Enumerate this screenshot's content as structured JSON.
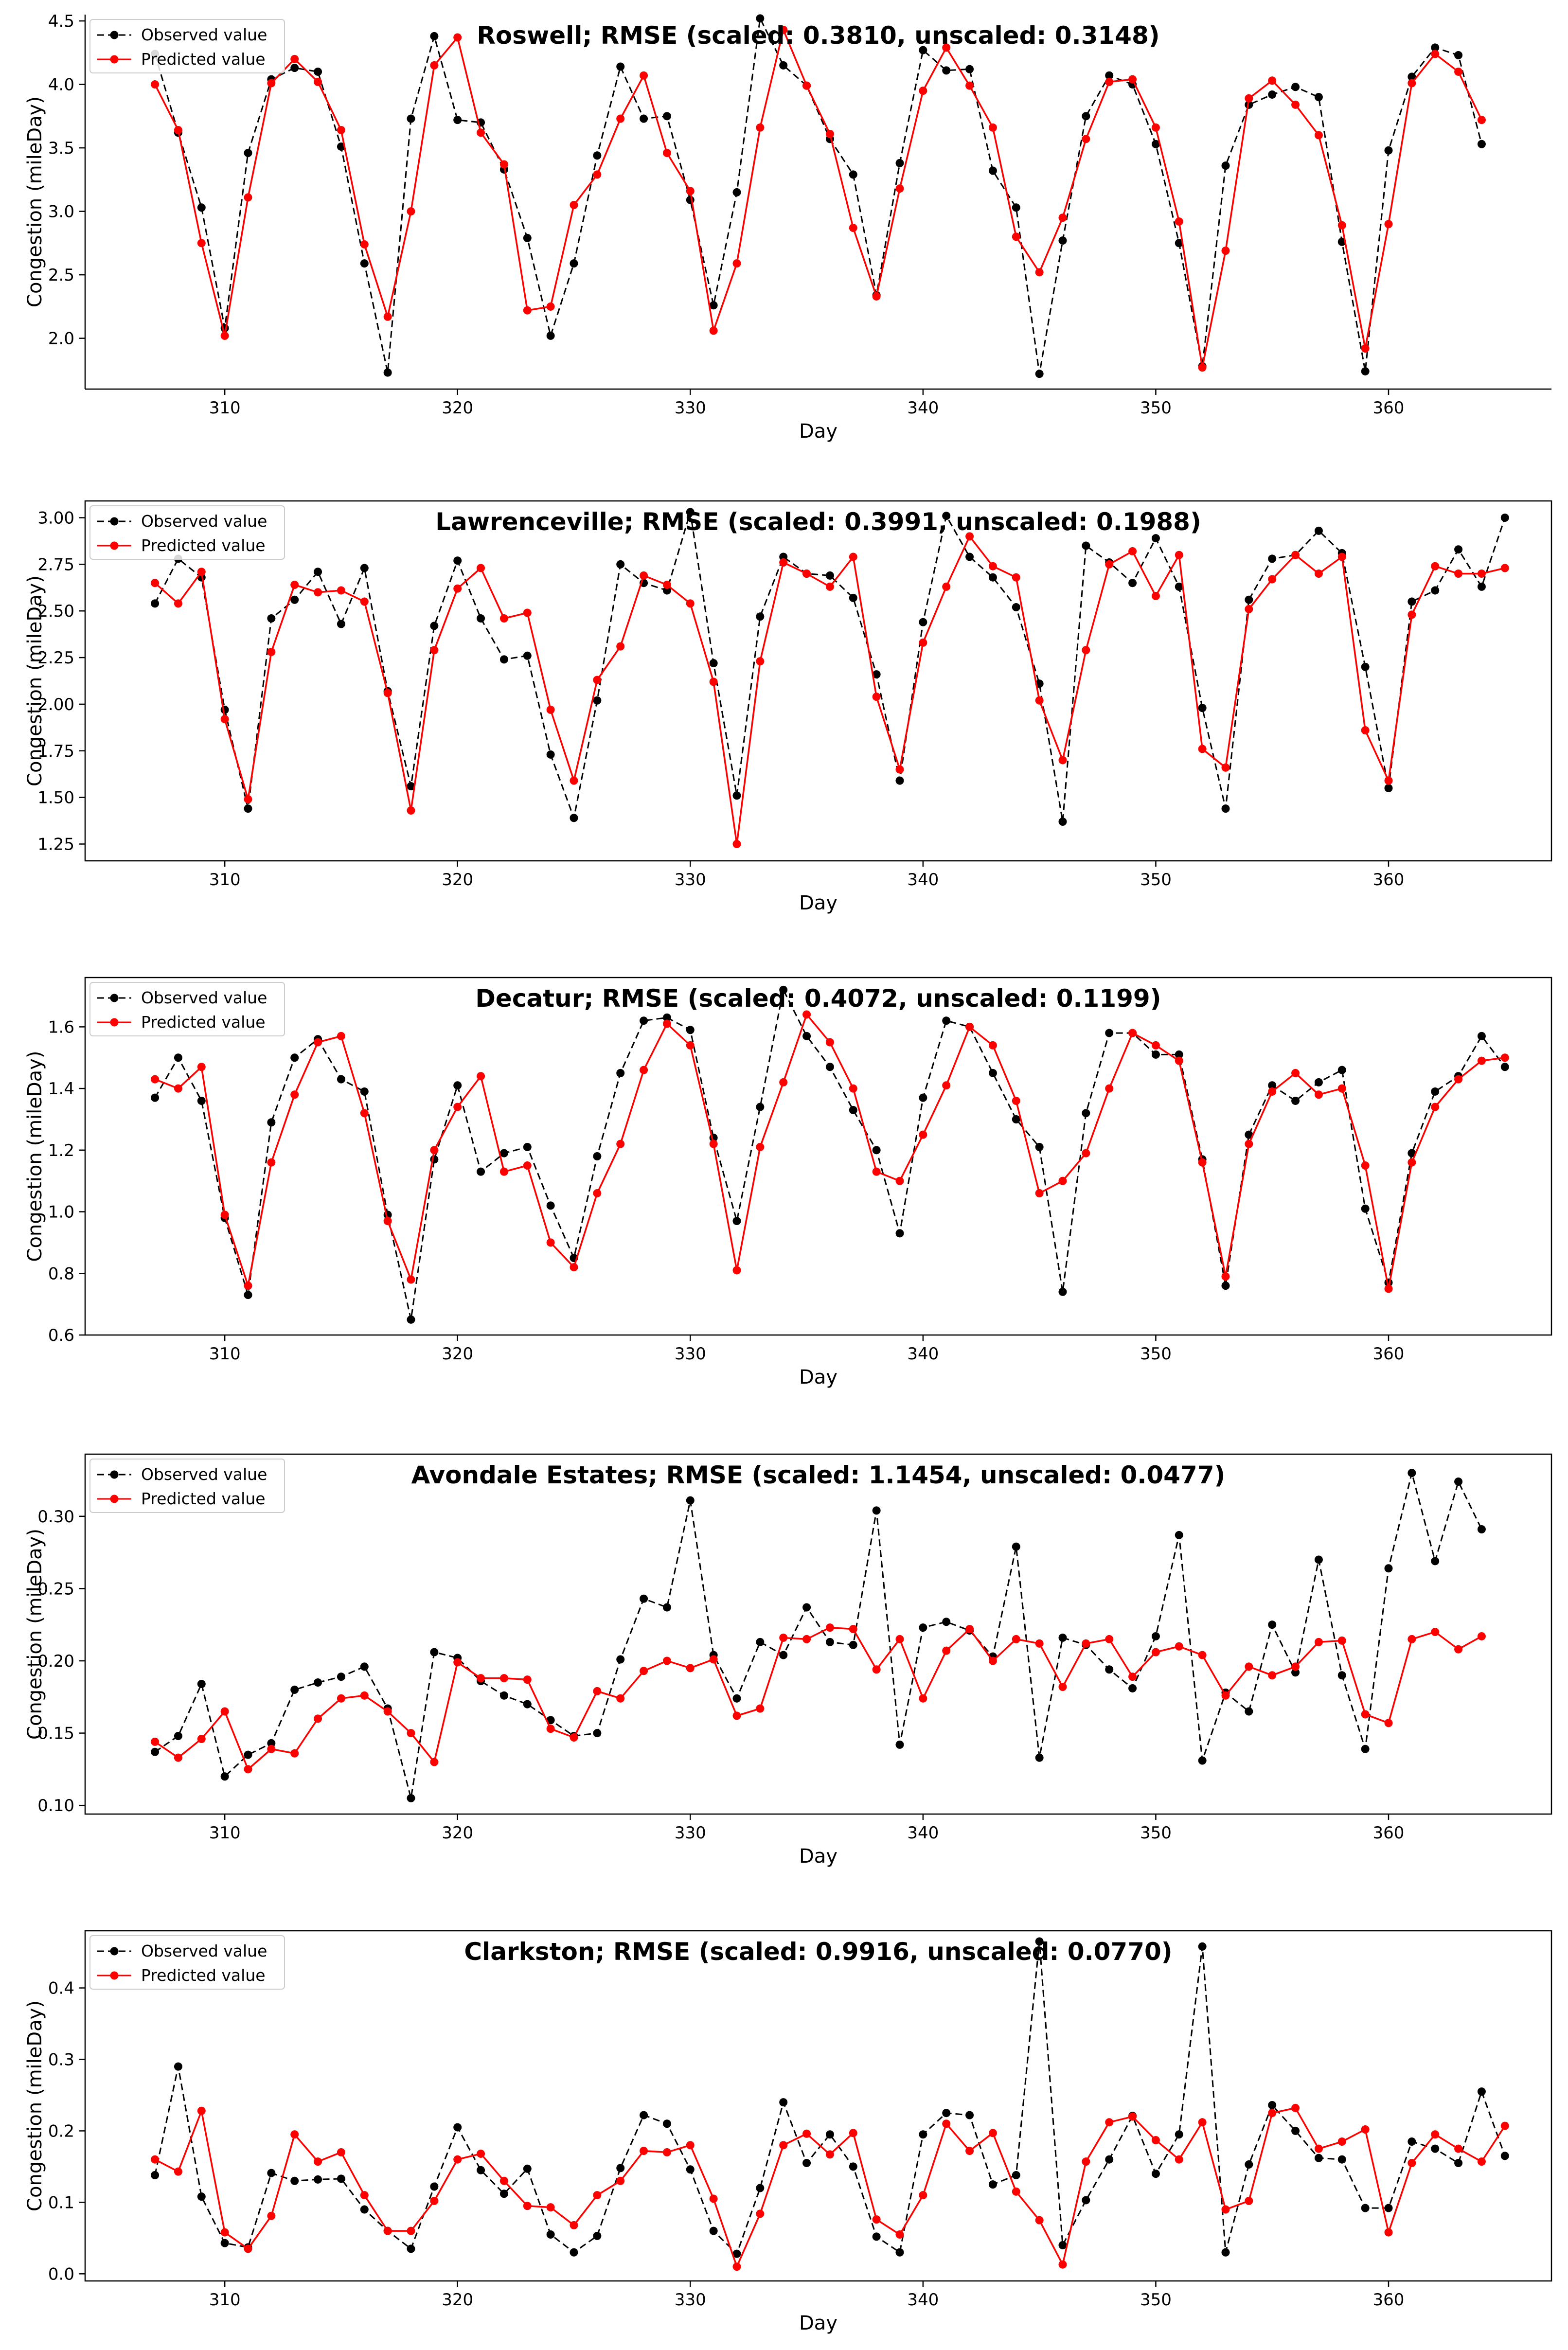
{
  "chart_data": [
    {
      "type": "line",
      "title": "Roswell; RMSE (scaled: 0.3810, unscaled: 0.3148)",
      "xlabel": "Day",
      "ylabel": "Congestion (mileDay)",
      "xlim": [
        304,
        367
      ],
      "ylim": [
        1.6,
        4.55
      ],
      "xticks": [
        310,
        320,
        330,
        340,
        350,
        360
      ],
      "yticks": [
        2.0,
        2.5,
        3.0,
        3.5,
        4.0,
        4.5
      ],
      "ytick_labels": [
        "2.0",
        "2.5",
        "3.0",
        "3.5",
        "4.0",
        "4.5"
      ],
      "legend": {
        "position": "top-left",
        "entries": [
          "Observed value",
          "Predicted value"
        ]
      },
      "series": [
        {
          "name": "Observed value",
          "color": "#000000",
          "style": "dashed",
          "values": [
            4.24,
            3.62,
            3.03,
            2.08,
            3.46,
            4.04,
            4.13,
            4.1,
            3.51,
            2.59,
            1.73,
            3.73,
            4.38,
            3.72,
            3.7,
            3.33,
            2.79,
            2.02,
            2.59,
            3.44,
            4.14,
            3.73,
            3.75,
            3.09,
            2.26,
            3.15,
            4.52,
            4.15,
            3.99,
            3.57,
            3.29,
            2.34,
            3.38,
            4.27,
            4.11,
            4.12,
            3.32,
            3.03,
            1.72,
            2.77,
            3.75,
            4.07,
            4.0,
            3.53,
            2.75,
            1.78,
            3.36,
            3.84,
            3.92,
            3.98,
            3.9,
            2.76,
            1.74,
            3.48,
            4.06,
            4.29,
            4.23,
            3.53
          ]
        },
        {
          "name": "Predicted value",
          "color": "#ff0000",
          "style": "solid",
          "values": [
            4.0,
            3.64,
            2.75,
            2.02,
            3.11,
            4.01,
            4.2,
            4.02,
            3.64,
            2.74,
            2.17,
            3.0,
            4.15,
            4.37,
            3.62,
            3.37,
            2.22,
            2.25,
            3.05,
            3.29,
            3.73,
            4.07,
            3.46,
            3.16,
            2.06,
            2.59,
            3.66,
            4.43,
            3.99,
            3.61,
            2.87,
            2.33,
            3.18,
            3.95,
            4.29,
            3.99,
            3.66,
            2.8,
            2.52,
            2.95,
            3.57,
            4.02,
            4.04,
            3.66,
            2.92,
            1.77,
            2.69,
            3.89,
            4.03,
            3.84,
            3.6,
            2.89,
            1.92,
            2.9,
            4.01,
            4.24,
            4.1,
            3.72
          ]
        }
      ]
    },
    {
      "type": "line",
      "title": "Lawrenceville; RMSE (scaled: 0.3991, unscaled: 0.1988)",
      "xlabel": "Day",
      "ylabel": "Congestion (mileDay)",
      "xlim": [
        304,
        367
      ],
      "ylim": [
        1.16,
        3.09
      ],
      "xticks": [
        310,
        320,
        330,
        340,
        350,
        360
      ],
      "yticks": [
        1.25,
        1.5,
        1.75,
        2.0,
        2.25,
        2.5,
        2.75,
        3.0
      ],
      "ytick_labels": [
        "1.25",
        "1.50",
        "1.75",
        "2.00",
        "2.25",
        "2.50",
        "2.75",
        "3.00"
      ],
      "legend": {
        "position": "top-left",
        "entries": [
          "Observed value",
          "Predicted value"
        ]
      },
      "series": [
        {
          "name": "Observed value",
          "color": "#000000",
          "style": "dashed",
          "values": [
            2.54,
            2.78,
            2.68,
            1.97,
            1.44,
            2.46,
            2.56,
            2.71,
            2.43,
            2.73,
            2.07,
            1.56,
            2.42,
            2.77,
            2.46,
            2.24,
            2.26,
            1.73,
            1.39,
            2.02,
            2.75,
            2.65,
            2.61,
            3.03,
            2.22,
            1.51,
            2.47,
            2.79,
            2.7,
            2.69,
            2.57,
            2.16,
            1.59,
            2.44,
            3.01,
            2.79,
            2.68,
            2.52,
            2.11,
            1.37,
            2.85,
            2.76,
            2.65,
            2.89,
            2.63,
            1.98,
            1.44,
            2.56,
            2.78,
            2.8,
            2.93,
            2.81,
            2.2,
            1.55,
            2.55,
            2.61,
            2.83,
            2.63,
            3.0
          ]
        },
        {
          "name": "Predicted value",
          "color": "#ff0000",
          "style": "solid",
          "values": [
            2.65,
            2.54,
            2.71,
            1.92,
            1.49,
            2.28,
            2.64,
            2.6,
            2.61,
            2.55,
            2.06,
            1.43,
            2.29,
            2.62,
            2.73,
            2.46,
            2.49,
            1.97,
            1.59,
            2.13,
            2.31,
            2.69,
            2.64,
            2.54,
            2.12,
            1.25,
            2.23,
            2.76,
            2.7,
            2.63,
            2.79,
            2.04,
            1.65,
            2.33,
            2.63,
            2.9,
            2.74,
            2.68,
            2.02,
            1.7,
            2.29,
            2.75,
            2.82,
            2.58,
            2.8,
            1.76,
            1.66,
            2.51,
            2.67,
            2.8,
            2.7,
            2.79,
            1.86,
            1.59,
            2.48,
            2.74,
            2.7,
            2.7,
            2.73
          ]
        }
      ]
    },
    {
      "type": "line",
      "title": "Decatur; RMSE (scaled: 0.4072, unscaled: 0.1199)",
      "xlabel": "Day",
      "ylabel": "Congestion (mileDay)",
      "xlim": [
        304,
        367
      ],
      "ylim": [
        0.6,
        1.76
      ],
      "xticks": [
        310,
        320,
        330,
        340,
        350,
        360
      ],
      "yticks": [
        0.6,
        0.8,
        1.0,
        1.2,
        1.4,
        1.6
      ],
      "ytick_labels": [
        "0.6",
        "0.8",
        "1.0",
        "1.2",
        "1.4",
        "1.6"
      ],
      "legend": {
        "position": "top-left",
        "entries": [
          "Observed value",
          "Predicted value"
        ]
      },
      "series": [
        {
          "name": "Observed value",
          "color": "#000000",
          "style": "dashed",
          "values": [
            1.37,
            1.5,
            1.36,
            0.98,
            0.73,
            1.29,
            1.5,
            1.56,
            1.43,
            1.39,
            0.99,
            0.65,
            1.17,
            1.41,
            1.13,
            1.19,
            1.21,
            1.02,
            0.85,
            1.18,
            1.45,
            1.62,
            1.63,
            1.59,
            1.24,
            0.97,
            1.34,
            1.72,
            1.57,
            1.47,
            1.33,
            1.2,
            0.93,
            1.37,
            1.62,
            1.6,
            1.45,
            1.3,
            1.21,
            0.74,
            1.32,
            1.58,
            1.58,
            1.51,
            1.51,
            1.17,
            0.76,
            1.25,
            1.41,
            1.36,
            1.42,
            1.46,
            1.01,
            0.77,
            1.19,
            1.39,
            1.44,
            1.57,
            1.47
          ]
        },
        {
          "name": "Predicted value",
          "color": "#ff0000",
          "style": "solid",
          "values": [
            1.43,
            1.4,
            1.47,
            0.99,
            0.76,
            1.16,
            1.38,
            1.55,
            1.57,
            1.32,
            0.97,
            0.78,
            1.2,
            1.34,
            1.44,
            1.13,
            1.15,
            0.9,
            0.82,
            1.06,
            1.22,
            1.46,
            1.61,
            1.54,
            1.22,
            0.81,
            1.21,
            1.42,
            1.64,
            1.55,
            1.4,
            1.13,
            1.1,
            1.25,
            1.41,
            1.6,
            1.54,
            1.36,
            1.06,
            1.1,
            1.19,
            1.4,
            1.58,
            1.54,
            1.49,
            1.16,
            0.79,
            1.22,
            1.39,
            1.45,
            1.38,
            1.4,
            1.15,
            0.75,
            1.16,
            1.34,
            1.43,
            1.49,
            1.5
          ]
        }
      ]
    },
    {
      "type": "line",
      "title": "Avondale Estates; RMSE (scaled: 1.1454, unscaled: 0.0477)",
      "xlabel": "Day",
      "ylabel": "Congestion (mileDay)",
      "xlim": [
        304,
        367
      ],
      "ylim": [
        0.094,
        0.343
      ],
      "xticks": [
        310,
        320,
        330,
        340,
        350,
        360
      ],
      "yticks": [
        0.1,
        0.15,
        0.2,
        0.25,
        0.3
      ],
      "ytick_labels": [
        "0.10",
        "0.15",
        "0.20",
        "0.25",
        "0.30"
      ],
      "legend": {
        "position": "top-left",
        "entries": [
          "Observed value",
          "Predicted value"
        ]
      },
      "series": [
        {
          "name": "Observed value",
          "color": "#000000",
          "style": "dashed",
          "values": [
            0.137,
            0.148,
            0.184,
            0.12,
            0.135,
            0.143,
            0.18,
            0.185,
            0.189,
            0.196,
            0.167,
            0.105,
            0.206,
            0.202,
            0.186,
            0.176,
            0.17,
            0.159,
            0.148,
            0.15,
            0.201,
            0.243,
            0.237,
            0.311,
            0.204,
            0.174,
            0.213,
            0.204,
            0.237,
            0.213,
            0.211,
            0.304,
            0.142,
            0.223,
            0.227,
            0.221,
            0.203,
            0.279,
            0.133,
            0.216,
            0.211,
            0.194,
            0.181,
            0.217,
            0.287,
            0.131,
            0.178,
            0.165,
            0.225,
            0.192,
            0.27,
            0.19,
            0.139,
            0.264,
            0.33,
            0.269,
            0.324,
            0.291
          ]
        },
        {
          "name": "Predicted value",
          "color": "#ff0000",
          "style": "solid",
          "values": [
            0.144,
            0.133,
            0.146,
            0.165,
            0.125,
            0.139,
            0.136,
            0.16,
            0.174,
            0.176,
            0.165,
            0.15,
            0.13,
            0.199,
            0.188,
            0.188,
            0.187,
            0.153,
            0.147,
            0.179,
            0.174,
            0.193,
            0.2,
            0.195,
            0.201,
            0.162,
            0.167,
            0.216,
            0.215,
            0.223,
            0.222,
            0.194,
            0.215,
            0.174,
            0.207,
            0.222,
            0.2,
            0.215,
            0.212,
            0.182,
            0.212,
            0.215,
            0.189,
            0.206,
            0.21,
            0.204,
            0.176,
            0.196,
            0.19,
            0.196,
            0.213,
            0.214,
            0.163,
            0.157,
            0.215,
            0.22,
            0.208,
            0.217
          ]
        }
      ]
    },
    {
      "type": "line",
      "title": "Clarkston; RMSE (scaled: 0.9916, unscaled: 0.0770)",
      "xlabel": "Day",
      "ylabel": "Congestion (mileDay)",
      "xlim": [
        304,
        367
      ],
      "ylim": [
        -0.01,
        0.48
      ],
      "xticks": [
        310,
        320,
        330,
        340,
        350,
        360
      ],
      "yticks": [
        0.0,
        0.1,
        0.2,
        0.3,
        0.4
      ],
      "ytick_labels": [
        "0.0",
        "0.1",
        "0.2",
        "0.3",
        "0.4"
      ],
      "legend": {
        "position": "top-left",
        "entries": [
          "Observed value",
          "Predicted value"
        ]
      },
      "series": [
        {
          "name": "Observed value",
          "color": "#000000",
          "style": "dashed",
          "values": [
            0.138,
            0.29,
            0.108,
            0.043,
            0.037,
            0.141,
            0.13,
            0.132,
            0.133,
            0.09,
            0.06,
            0.035,
            0.122,
            0.205,
            0.145,
            0.112,
            0.147,
            0.055,
            0.03,
            0.053,
            0.148,
            0.222,
            0.21,
            0.146,
            0.06,
            0.028,
            0.12,
            0.24,
            0.155,
            0.195,
            0.15,
            0.052,
            0.03,
            0.195,
            0.225,
            0.222,
            0.125,
            0.138,
            0.465,
            0.04,
            0.103,
            0.16,
            0.221,
            0.14,
            0.195,
            0.458,
            0.03,
            0.153,
            0.236,
            0.2,
            0.162,
            0.16,
            0.092,
            0.092,
            0.185,
            0.175,
            0.155,
            0.255,
            0.165
          ]
        },
        {
          "name": "Predicted value",
          "color": "#ff0000",
          "style": "solid",
          "values": [
            0.16,
            0.143,
            0.228,
            0.058,
            0.035,
            0.081,
            0.195,
            0.157,
            0.17,
            0.11,
            0.06,
            0.06,
            0.102,
            0.16,
            0.168,
            0.13,
            0.095,
            0.093,
            0.068,
            0.11,
            0.13,
            0.172,
            0.17,
            0.18,
            0.105,
            0.01,
            0.084,
            0.18,
            0.196,
            0.167,
            0.197,
            0.076,
            0.055,
            0.11,
            0.21,
            0.172,
            0.197,
            0.115,
            0.075,
            0.013,
            0.157,
            0.212,
            0.22,
            0.187,
            0.16,
            0.212,
            0.09,
            0.102,
            0.225,
            0.232,
            0.175,
            0.185,
            0.202,
            0.058,
            0.155,
            0.195,
            0.175,
            0.157,
            0.207
          ]
        }
      ]
    }
  ]
}
